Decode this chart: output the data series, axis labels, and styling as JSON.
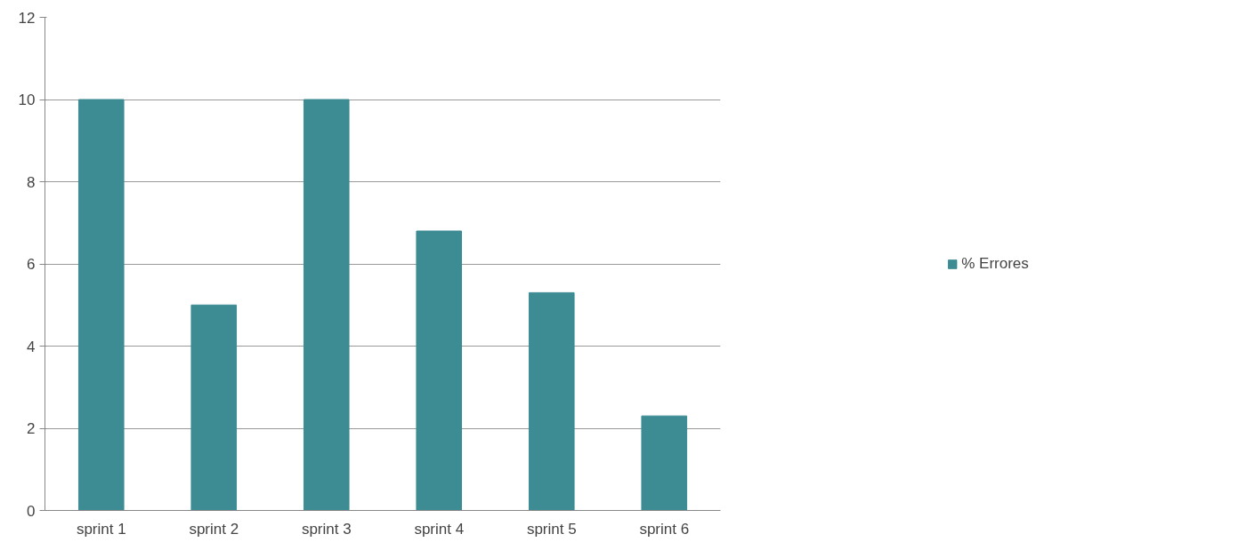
{
  "chart_data": {
    "type": "bar",
    "categories": [
      "sprint 1",
      "sprint 2",
      "sprint 3",
      "sprint 4",
      "sprint 5",
      "sprint 6"
    ],
    "series": [
      {
        "name": "% Errores",
        "color": "#3d8b93",
        "values": [
          10,
          5,
          10,
          6.8,
          5.3,
          2.3
        ]
      }
    ],
    "ylim": [
      0,
      12
    ],
    "yticks": [
      0,
      2,
      4,
      6,
      8,
      10,
      12
    ],
    "grid": "y",
    "legend": "right"
  }
}
